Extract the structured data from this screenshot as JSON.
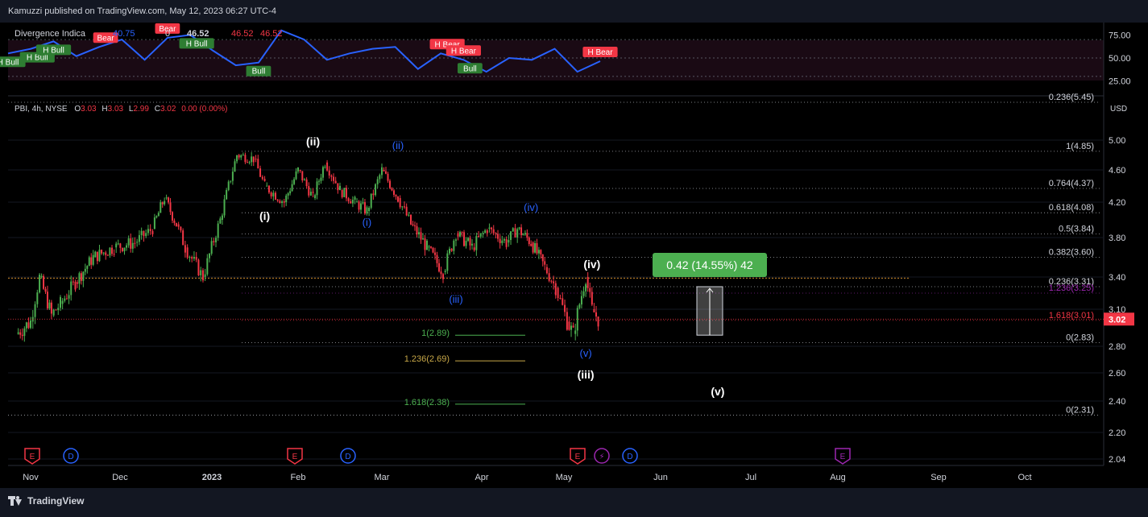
{
  "header": {
    "publisher_line": "Kamuzzi published on TradingView.com, May 12, 2023 06:27 UTC-4"
  },
  "footer": {
    "brand": "TradingView"
  },
  "legend": {
    "indicator": {
      "name": "Divergence Indica",
      "v1": "40.75",
      "v2": "46.52",
      "v3": "46.52",
      "v4": "46.52",
      "ghost": "0"
    },
    "symbol": {
      "ticker": "PBI, 4h, NYSE",
      "o_label": "O",
      "o": "3.03",
      "h_label": "H",
      "h": "3.03",
      "l_label": "L",
      "l": "2.99",
      "c_label": "C",
      "c": "3.02",
      "chg": "0.00 (0.00%)"
    }
  },
  "colors": {
    "up": "#4caf50",
    "down": "#f23645",
    "rsi_line": "#2962ff",
    "bear": "#f23645",
    "bull": "#2e7d32",
    "ew_white": "#ffffff",
    "ew_blue": "#2962ff",
    "measure_green": "#4caf50",
    "price_tag": "#f23645",
    "earnings": "#f23645",
    "dividend": "#2962ff",
    "split": "#9c27b0",
    "earnings_future": "#9c27b0"
  },
  "chart_data": [
    {
      "type": "line",
      "title": "Divergence Indica",
      "yticks": [
        "75.00",
        "50.00",
        "25.00"
      ],
      "ylim": [
        15,
        85
      ],
      "levels": [
        70,
        50,
        30
      ],
      "x": [
        "Nov",
        "Nov",
        "Nov",
        "Nov",
        "Nov",
        "Dec",
        "Dec",
        "Dec",
        "Dec",
        "2023",
        "2023",
        "2023",
        "2023",
        "Feb",
        "Feb",
        "Feb",
        "Feb",
        "Mar",
        "Mar",
        "Mar",
        "Mar",
        "Apr",
        "Apr",
        "Apr",
        "Apr",
        "May",
        "May"
      ],
      "values": [
        55,
        60,
        68,
        52,
        62,
        70,
        48,
        72,
        75,
        58,
        42,
        45,
        80,
        70,
        48,
        55,
        60,
        62,
        38,
        55,
        48,
        35,
        50,
        48,
        60,
        35,
        46.52
      ],
      "signals": [
        {
          "label": "H Bull",
          "type": "bull",
          "idx": 0
        },
        {
          "label": "H Bull",
          "type": "bull",
          "idx": 1
        },
        {
          "label": "H Bull",
          "type": "bull",
          "idx": 2
        },
        {
          "label": "Bear",
          "type": "bear",
          "idx": 4
        },
        {
          "label": "Bear",
          "type": "bear",
          "idx": 7
        },
        {
          "label": "H Bull",
          "type": "bull",
          "idx": 8
        },
        {
          "label": "Bull",
          "type": "bull",
          "idx": 11
        },
        {
          "label": "H Bear",
          "type": "bear",
          "idx": 19
        },
        {
          "label": "H Bear",
          "type": "bear",
          "idx": 20
        },
        {
          "label": "Bull",
          "type": "bull",
          "idx": 20
        },
        {
          "label": "H Bear",
          "type": "bear",
          "idx": 26
        }
      ]
    },
    {
      "type": "line",
      "title": "PBI, 4h, NYSE",
      "ylabel": "USD",
      "ylim": [
        1.98,
        5.55
      ],
      "yticks": [
        "5.00",
        "4.60",
        "4.20",
        "3.80",
        "3.40",
        "3.10",
        "2.80",
        "2.60",
        "2.40",
        "2.20",
        "2.04"
      ],
      "xticks": [
        "Nov",
        "Dec",
        "2023",
        "Feb",
        "Mar",
        "Apr",
        "May",
        "Jun",
        "Jul",
        "Aug",
        "Sep",
        "Oct"
      ],
      "last_price": "3.02",
      "x": [
        "Oct 27",
        "Nov 1",
        "Nov 4",
        "Nov 8",
        "Nov 11",
        "Nov 16",
        "Nov 22",
        "Nov 29",
        "Dec 6",
        "Dec 12",
        "Dec 16",
        "Dec 20",
        "Dec 23",
        "Dec 29",
        "Jan 4",
        "Jan 10",
        "Jan 16",
        "Jan 20",
        "Jan 27",
        "Feb 1",
        "Feb 6",
        "Feb 10",
        "Feb 15",
        "Feb 20",
        "Feb 24",
        "Mar 1",
        "Mar 6",
        "Mar 10",
        "Mar 15",
        "Mar 20",
        "Mar 24",
        "Mar 29",
        "Apr 3",
        "Apr 10",
        "Apr 14",
        "Apr 19",
        "Apr 24",
        "Apr 28",
        "May 2",
        "May 4",
        "May 8",
        "May 10",
        "May 12"
      ],
      "values": [
        2.9,
        3.0,
        3.4,
        3.05,
        3.15,
        3.35,
        3.6,
        3.7,
        3.75,
        3.9,
        4.25,
        3.95,
        3.7,
        3.4,
        4.0,
        4.8,
        4.75,
        4.4,
        4.2,
        4.6,
        4.25,
        4.7,
        4.35,
        4.2,
        4.1,
        4.6,
        4.25,
        3.95,
        3.7,
        3.45,
        3.85,
        3.7,
        3.9,
        3.75,
        3.9,
        3.75,
        3.5,
        3.3,
        3.0,
        2.9,
        3.4,
        3.1,
        3.02
      ],
      "fib_levels_main": [
        {
          "label": "0.236(5.45)",
          "price": 5.45
        },
        {
          "label": "1(4.85)",
          "price": 4.85
        },
        {
          "label": "0.764(4.37)",
          "price": 4.37
        },
        {
          "label": "0.618(4.08)",
          "price": 4.08
        },
        {
          "label": "0.5(3.84)",
          "price": 3.84
        },
        {
          "label": "0.382(3.60)",
          "price": 3.6
        },
        {
          "label": "0.236(3.31)",
          "price": 3.31
        },
        {
          "label": "1.236(3.25)",
          "price": 3.25
        },
        {
          "label": "1.618(3.01)",
          "price": 3.01
        },
        {
          "label": "0(2.83)",
          "price": 2.83
        },
        {
          "label": "0(2.31)",
          "price": 2.31
        }
      ],
      "fib_levels_ext": [
        {
          "label": "1(2.89)",
          "price": 2.89
        },
        {
          "label": "1.236(2.69)",
          "price": 2.69
        },
        {
          "label": "1.618(2.38)",
          "price": 2.38
        }
      ],
      "wave_labels": [
        {
          "label": "(i)",
          "color": "white",
          "x": "Jan 20",
          "price": 4.0
        },
        {
          "label": "(ii)",
          "color": "white",
          "x": "Feb 6",
          "price": 4.93
        },
        {
          "label": "(iii)",
          "color": "white",
          "x": "May 8",
          "price": 2.56
        },
        {
          "label": "(iv)",
          "color": "white",
          "x": "May 10",
          "price": 3.49
        },
        {
          "label": "(v)",
          "color": "white",
          "x": "Jun 20",
          "price": 2.44
        },
        {
          "label": "(i)",
          "color": "blue",
          "x": "Feb 24",
          "price": 3.93
        },
        {
          "label": "(ii)",
          "color": "blue",
          "x": "Mar 6",
          "price": 4.88
        },
        {
          "label": "(iii)",
          "color": "blue",
          "x": "Mar 24",
          "price": 3.16
        },
        {
          "label": "(iv)",
          "color": "blue",
          "x": "Apr 19",
          "price": 4.1
        },
        {
          "label": "(v)",
          "color": "blue",
          "x": "May 8",
          "price": 2.72
        }
      ],
      "measure": {
        "label": "0.42 (14.55%) 42",
        "from": 2.89,
        "to": 3.31
      },
      "events": [
        {
          "type": "E",
          "kind": "earnings"
        },
        {
          "type": "D",
          "kind": "dividend"
        },
        {
          "type": "E",
          "kind": "earnings"
        },
        {
          "type": "D",
          "kind": "dividend"
        },
        {
          "type": "E",
          "kind": "earnings"
        },
        {
          "type": "⚡",
          "kind": "split"
        },
        {
          "type": "D",
          "kind": "dividend"
        },
        {
          "type": "E",
          "kind": "earnings_future"
        }
      ]
    }
  ]
}
